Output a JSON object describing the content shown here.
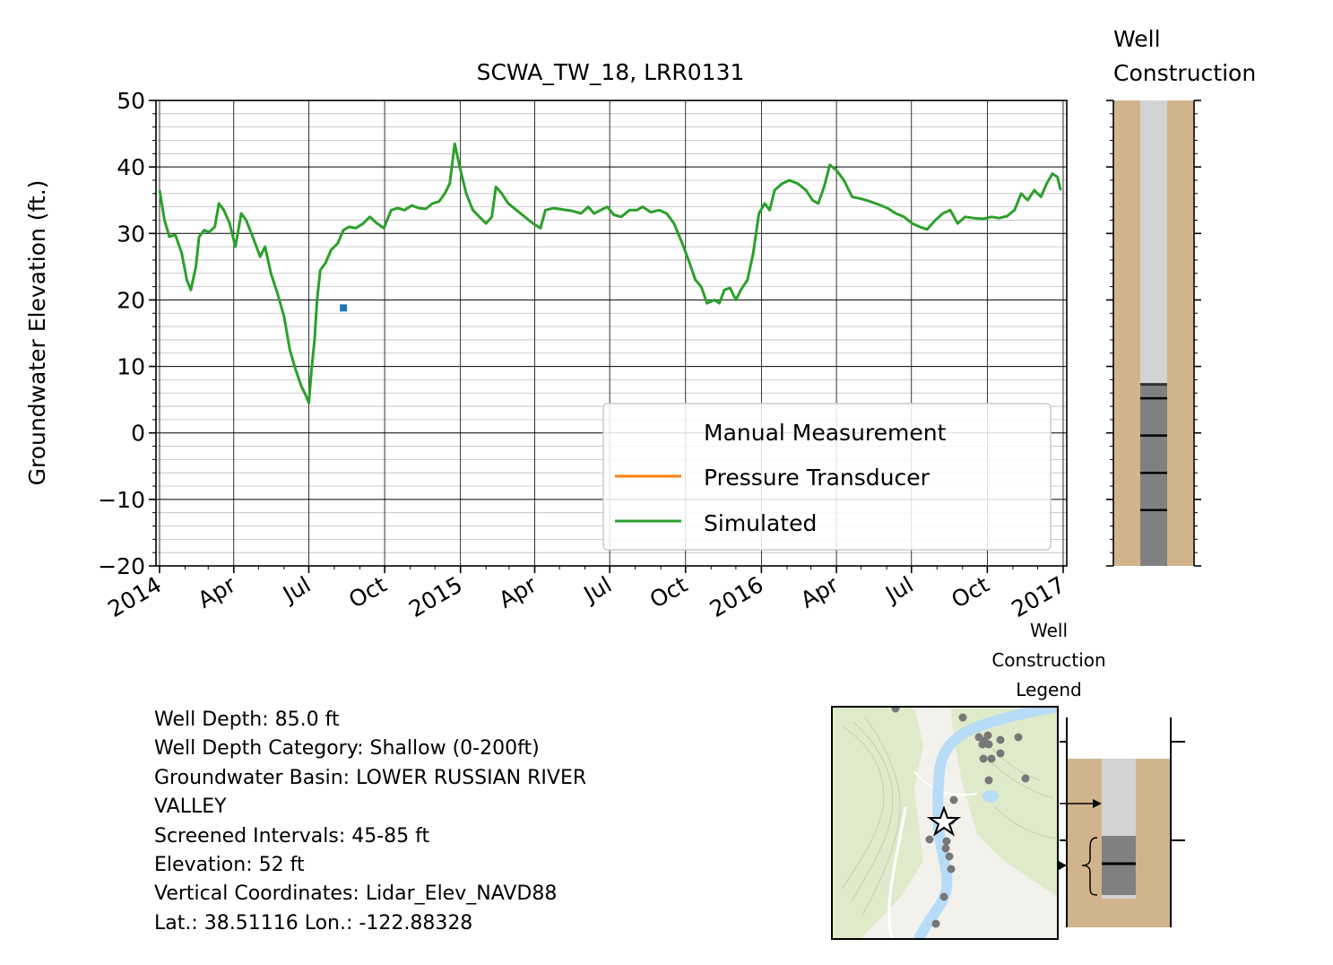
{
  "chart_data": {
    "type": "line",
    "title": "SCWA_TW_18, LRR0131",
    "ylabel": "Groundwater Elevation (ft.)",
    "xlabel": "",
    "ylim": [
      -20,
      50
    ],
    "yticks": [
      "50",
      "40",
      "30",
      "20",
      "10",
      "0",
      "−10",
      "−20"
    ],
    "xlim": [
      "2014-01-01",
      "2017-01-01"
    ],
    "xticks": [
      {
        "date": "2014-01-01",
        "label": "2014"
      },
      {
        "date": "2014-04-01",
        "label": "Apr"
      },
      {
        "date": "2014-07-01",
        "label": "Jul"
      },
      {
        "date": "2014-10-01",
        "label": "Oct"
      },
      {
        "date": "2015-01-01",
        "label": "2015"
      },
      {
        "date": "2015-04-01",
        "label": "Apr"
      },
      {
        "date": "2015-07-01",
        "label": "Jul"
      },
      {
        "date": "2015-10-01",
        "label": "Oct"
      },
      {
        "date": "2016-01-01",
        "label": "2016"
      },
      {
        "date": "2016-04-01",
        "label": "Apr"
      },
      {
        "date": "2016-07-01",
        "label": "Jul"
      },
      {
        "date": "2016-10-01",
        "label": "Oct"
      },
      {
        "date": "2017-01-01",
        "label": "2017"
      }
    ],
    "grid": true,
    "legend_position": "lower-right",
    "legend": [
      "Manual Measurement",
      "Pressure Transducer",
      "Simulated"
    ],
    "series": [
      {
        "name": "Manual Measurement",
        "color": "#1f77b4",
        "marker": "square",
        "points": [
          {
            "x": "2014-08-12",
            "y": 18.8
          }
        ]
      },
      {
        "name": "Pressure Transducer",
        "color": "#ff7f0e",
        "points": []
      },
      {
        "name": "Simulated",
        "color": "#2ca02c",
        "points": [
          {
            "x": "2014-01-01",
            "y": 36.5
          },
          {
            "x": "2014-01-07",
            "y": 32
          },
          {
            "x": "2014-01-13",
            "y": 29.5
          },
          {
            "x": "2014-01-20",
            "y": 29.8
          },
          {
            "x": "2014-01-28",
            "y": 27
          },
          {
            "x": "2014-02-03",
            "y": 23
          },
          {
            "x": "2014-02-08",
            "y": 21.5
          },
          {
            "x": "2014-02-14",
            "y": 25
          },
          {
            "x": "2014-02-18",
            "y": 29.5
          },
          {
            "x": "2014-02-24",
            "y": 30.5
          },
          {
            "x": "2014-03-02",
            "y": 30.2
          },
          {
            "x": "2014-03-09",
            "y": 31
          },
          {
            "x": "2014-03-14",
            "y": 34.5
          },
          {
            "x": "2014-03-20",
            "y": 33.5
          },
          {
            "x": "2014-03-27",
            "y": 31.5
          },
          {
            "x": "2014-04-03",
            "y": 28
          },
          {
            "x": "2014-04-10",
            "y": 33
          },
          {
            "x": "2014-04-16",
            "y": 32
          },
          {
            "x": "2014-04-24",
            "y": 29.5
          },
          {
            "x": "2014-05-03",
            "y": 26.5
          },
          {
            "x": "2014-05-09",
            "y": 28
          },
          {
            "x": "2014-05-16",
            "y": 24
          },
          {
            "x": "2014-05-24",
            "y": 21
          },
          {
            "x": "2014-06-01",
            "y": 17.5
          },
          {
            "x": "2014-06-08",
            "y": 12.5
          },
          {
            "x": "2014-06-15",
            "y": 9.5
          },
          {
            "x": "2014-06-22",
            "y": 7
          },
          {
            "x": "2014-06-28",
            "y": 5.5
          },
          {
            "x": "2014-07-01",
            "y": 4.5
          },
          {
            "x": "2014-07-04",
            "y": 9
          },
          {
            "x": "2014-07-08",
            "y": 14
          },
          {
            "x": "2014-07-11",
            "y": 20
          },
          {
            "x": "2014-07-15",
            "y": 24.5
          },
          {
            "x": "2014-07-21",
            "y": 25.5
          },
          {
            "x": "2014-07-28",
            "y": 27.5
          },
          {
            "x": "2014-08-05",
            "y": 28.5
          },
          {
            "x": "2014-08-12",
            "y": 30.5
          },
          {
            "x": "2014-08-19",
            "y": 31
          },
          {
            "x": "2014-08-27",
            "y": 30.8
          },
          {
            "x": "2014-09-05",
            "y": 31.5
          },
          {
            "x": "2014-09-13",
            "y": 32.5
          },
          {
            "x": "2014-09-22",
            "y": 31.5
          },
          {
            "x": "2014-09-30",
            "y": 30.8
          },
          {
            "x": "2014-10-09",
            "y": 33.5
          },
          {
            "x": "2014-10-17",
            "y": 33.8
          },
          {
            "x": "2014-10-25",
            "y": 33.5
          },
          {
            "x": "2014-11-03",
            "y": 34.2
          },
          {
            "x": "2014-11-12",
            "y": 33.8
          },
          {
            "x": "2014-11-20",
            "y": 33.7
          },
          {
            "x": "2014-11-28",
            "y": 34.5
          },
          {
            "x": "2014-12-06",
            "y": 34.8
          },
          {
            "x": "2014-12-13",
            "y": 36
          },
          {
            "x": "2014-12-19",
            "y": 37.5
          },
          {
            "x": "2014-12-25",
            "y": 43.5
          },
          {
            "x": "2014-12-31",
            "y": 40
          },
          {
            "x": "2015-01-08",
            "y": 36
          },
          {
            "x": "2015-01-16",
            "y": 33.5
          },
          {
            "x": "2015-01-24",
            "y": 32.5
          },
          {
            "x": "2015-02-01",
            "y": 31.5
          },
          {
            "x": "2015-02-08",
            "y": 32.5
          },
          {
            "x": "2015-02-13",
            "y": 37
          },
          {
            "x": "2015-02-20",
            "y": 36
          },
          {
            "x": "2015-02-28",
            "y": 34.5
          },
          {
            "x": "2015-03-10",
            "y": 33.5
          },
          {
            "x": "2015-03-20",
            "y": 32.5
          },
          {
            "x": "2015-03-30",
            "y": 31.5
          },
          {
            "x": "2015-04-08",
            "y": 30.8
          },
          {
            "x": "2015-04-14",
            "y": 33.5
          },
          {
            "x": "2015-04-24",
            "y": 33.8
          },
          {
            "x": "2015-05-05",
            "y": 33.6
          },
          {
            "x": "2015-05-16",
            "y": 33.4
          },
          {
            "x": "2015-05-27",
            "y": 33
          },
          {
            "x": "2015-06-05",
            "y": 34
          },
          {
            "x": "2015-06-12",
            "y": 33
          },
          {
            "x": "2015-06-20",
            "y": 33.5
          },
          {
            "x": "2015-06-28",
            "y": 34
          },
          {
            "x": "2015-07-06",
            "y": 32.8
          },
          {
            "x": "2015-07-15",
            "y": 32.5
          },
          {
            "x": "2015-07-25",
            "y": 33.5
          },
          {
            "x": "2015-08-03",
            "y": 33.5
          },
          {
            "x": "2015-08-10",
            "y": 34
          },
          {
            "x": "2015-08-20",
            "y": 33.2
          },
          {
            "x": "2015-08-30",
            "y": 33.5
          },
          {
            "x": "2015-09-08",
            "y": 33
          },
          {
            "x": "2015-09-17",
            "y": 31.5
          },
          {
            "x": "2015-09-27",
            "y": 28.5
          },
          {
            "x": "2015-10-06",
            "y": 25.5
          },
          {
            "x": "2015-10-13",
            "y": 23
          },
          {
            "x": "2015-10-20",
            "y": 22
          },
          {
            "x": "2015-10-27",
            "y": 19.5
          },
          {
            "x": "2015-11-05",
            "y": 20
          },
          {
            "x": "2015-11-11",
            "y": 19.5
          },
          {
            "x": "2015-11-17",
            "y": 21.5
          },
          {
            "x": "2015-11-24",
            "y": 21.8
          },
          {
            "x": "2015-12-01",
            "y": 20
          },
          {
            "x": "2015-12-07",
            "y": 21.5
          },
          {
            "x": "2015-12-15",
            "y": 23
          },
          {
            "x": "2015-12-22",
            "y": 27
          },
          {
            "x": "2015-12-29",
            "y": 33
          },
          {
            "x": "2016-01-05",
            "y": 34.5
          },
          {
            "x": "2016-01-11",
            "y": 33.5
          },
          {
            "x": "2016-01-17",
            "y": 36.5
          },
          {
            "x": "2016-01-26",
            "y": 37.5
          },
          {
            "x": "2016-02-04",
            "y": 38
          },
          {
            "x": "2016-02-14",
            "y": 37.5
          },
          {
            "x": "2016-02-24",
            "y": 36.5
          },
          {
            "x": "2016-03-03",
            "y": 35
          },
          {
            "x": "2016-03-10",
            "y": 34.5
          },
          {
            "x": "2016-03-17",
            "y": 37
          },
          {
            "x": "2016-03-24",
            "y": 40.3
          },
          {
            "x": "2016-04-01",
            "y": 39.5
          },
          {
            "x": "2016-04-10",
            "y": 38
          },
          {
            "x": "2016-04-20",
            "y": 35.5
          },
          {
            "x": "2016-05-01",
            "y": 35.2
          },
          {
            "x": "2016-05-12",
            "y": 34.8
          },
          {
            "x": "2016-05-23",
            "y": 34.3
          },
          {
            "x": "2016-06-02",
            "y": 33.8
          },
          {
            "x": "2016-06-12",
            "y": 33
          },
          {
            "x": "2016-06-22",
            "y": 32.5
          },
          {
            "x": "2016-07-02",
            "y": 31.5
          },
          {
            "x": "2016-07-11",
            "y": 31
          },
          {
            "x": "2016-07-20",
            "y": 30.6
          },
          {
            "x": "2016-07-30",
            "y": 32
          },
          {
            "x": "2016-08-08",
            "y": 33
          },
          {
            "x": "2016-08-17",
            "y": 33.5
          },
          {
            "x": "2016-08-26",
            "y": 31.5
          },
          {
            "x": "2016-09-04",
            "y": 32.5
          },
          {
            "x": "2016-09-15",
            "y": 32.3
          },
          {
            "x": "2016-09-26",
            "y": 32.2
          },
          {
            "x": "2016-10-06",
            "y": 32.5
          },
          {
            "x": "2016-10-15",
            "y": 32.3
          },
          {
            "x": "2016-10-25",
            "y": 32.6
          },
          {
            "x": "2016-11-03",
            "y": 33.5
          },
          {
            "x": "2016-11-11",
            "y": 36
          },
          {
            "x": "2016-11-19",
            "y": 35
          },
          {
            "x": "2016-11-27",
            "y": 36.5
          },
          {
            "x": "2016-12-05",
            "y": 35.5
          },
          {
            "x": "2016-12-12",
            "y": 37.5
          },
          {
            "x": "2016-12-19",
            "y": 39
          },
          {
            "x": "2016-12-25",
            "y": 38.5
          },
          {
            "x": "2016-12-29",
            "y": 36.5
          }
        ]
      }
    ]
  },
  "well_construction": {
    "title_line1": "Well",
    "title_line2": "Construction",
    "casing_to_screen_fraction": 0.61,
    "screen_tick_fractions": [
      0.64,
      0.72,
      0.8,
      0.88
    ],
    "colors": {
      "soil": "#d2b48c",
      "casing": "#d3d3d3",
      "screen": "#808080"
    }
  },
  "legend_panel": {
    "line1": "Well",
    "line2": "Construction",
    "line3": "Legend"
  },
  "info": {
    "well_depth": "Well Depth: 85.0 ft",
    "depth_category": "Well Depth Category: Shallow (0-200ft)",
    "basin_line1": "Groundwater Basin: LOWER RUSSIAN RIVER",
    "basin_line2": "VALLEY",
    "screened": "Screened Intervals: 45-85 ft",
    "elevation": "Elevation: 52 ft",
    "vertical": "Vertical Coordinates: Lidar_Elev_NAVD88",
    "latlon": "Lat.: 38.51116 Lon.: -122.88328"
  },
  "map": {
    "marker_color": "#777777",
    "water_color": "#b7dcf7",
    "land_color": "#f3f1ec",
    "veg_color": "#dfeacb"
  }
}
